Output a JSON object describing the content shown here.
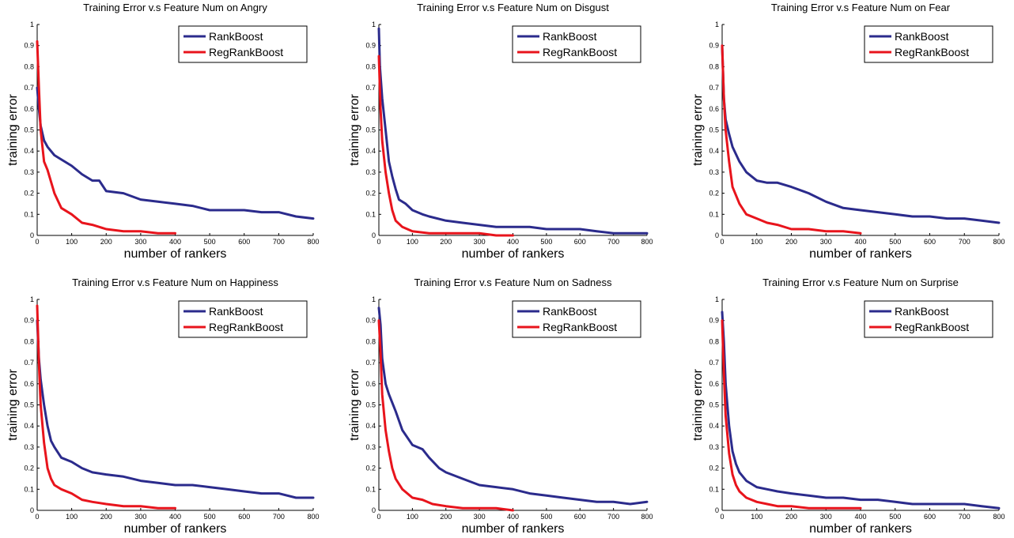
{
  "chart_data": [
    {
      "type": "line",
      "title": "Training Error v.s Feature Num on Angry",
      "xlabel": "number of rankers",
      "ylabel": "training error",
      "xlim": [
        0,
        800
      ],
      "ylim": [
        0,
        1
      ],
      "xticks": [
        0,
        100,
        200,
        300,
        400,
        500,
        600,
        700,
        800
      ],
      "yticks": [
        0,
        0.1,
        0.2,
        0.3,
        0.4,
        0.5,
        0.6,
        0.7,
        0.8,
        0.9,
        1
      ],
      "legend": "top-right",
      "series": [
        {
          "name": "RankBoost",
          "color": "#2b2b8c",
          "x": [
            0,
            5,
            10,
            20,
            30,
            50,
            70,
            100,
            130,
            160,
            180,
            200,
            250,
            300,
            350,
            400,
            450,
            500,
            550,
            600,
            650,
            700,
            750,
            800
          ],
          "y": [
            0.7,
            0.6,
            0.52,
            0.45,
            0.42,
            0.38,
            0.36,
            0.33,
            0.29,
            0.26,
            0.26,
            0.21,
            0.2,
            0.17,
            0.16,
            0.15,
            0.14,
            0.12,
            0.12,
            0.12,
            0.11,
            0.11,
            0.09,
            0.08
          ]
        },
        {
          "name": "RegRankBoost",
          "color": "#e8141c",
          "x": [
            0,
            5,
            10,
            20,
            30,
            50,
            70,
            100,
            130,
            160,
            200,
            250,
            300,
            350,
            400
          ],
          "y": [
            0.92,
            0.7,
            0.5,
            0.35,
            0.31,
            0.2,
            0.13,
            0.1,
            0.06,
            0.05,
            0.03,
            0.02,
            0.02,
            0.01,
            0.01
          ]
        }
      ]
    },
    {
      "type": "line",
      "title": "Training Error v.s Feature Num on Disgust",
      "xlabel": "number of rankers",
      "ylabel": "training error",
      "xlim": [
        0,
        800
      ],
      "ylim": [
        0,
        1
      ],
      "xticks": [
        0,
        100,
        200,
        300,
        400,
        500,
        600,
        700,
        800
      ],
      "yticks": [
        0,
        0.1,
        0.2,
        0.3,
        0.4,
        0.5,
        0.6,
        0.7,
        0.8,
        0.9,
        1
      ],
      "legend": "top-right",
      "series": [
        {
          "name": "RankBoost",
          "color": "#2b2b8c",
          "x": [
            0,
            3,
            10,
            20,
            30,
            40,
            50,
            60,
            80,
            100,
            130,
            150,
            200,
            250,
            300,
            350,
            400,
            450,
            500,
            550,
            600,
            650,
            700,
            750,
            800
          ],
          "y": [
            0.98,
            0.8,
            0.65,
            0.5,
            0.35,
            0.28,
            0.22,
            0.17,
            0.15,
            0.12,
            0.1,
            0.09,
            0.07,
            0.06,
            0.05,
            0.04,
            0.04,
            0.04,
            0.03,
            0.03,
            0.03,
            0.02,
            0.01,
            0.01,
            0.01
          ]
        },
        {
          "name": "RegRankBoost",
          "color": "#e8141c",
          "x": [
            0,
            5,
            10,
            20,
            30,
            40,
            50,
            70,
            100,
            150,
            200,
            250,
            300,
            350,
            400
          ],
          "y": [
            0.85,
            0.6,
            0.45,
            0.3,
            0.2,
            0.12,
            0.07,
            0.04,
            0.02,
            0.01,
            0.01,
            0.01,
            0.01,
            0.0,
            0.0
          ]
        }
      ]
    },
    {
      "type": "line",
      "title": "Training Error v.s Feature Num on Fear",
      "xlabel": "number of rankers",
      "ylabel": "training error",
      "xlim": [
        0,
        800
      ],
      "ylim": [
        0,
        1
      ],
      "xticks": [
        0,
        100,
        200,
        300,
        400,
        500,
        600,
        700,
        800
      ],
      "yticks": [
        0,
        0.1,
        0.2,
        0.3,
        0.4,
        0.5,
        0.6,
        0.7,
        0.8,
        0.9,
        1
      ],
      "legend": "top-right",
      "series": [
        {
          "name": "RankBoost",
          "color": "#2b2b8c",
          "x": [
            0,
            5,
            10,
            20,
            30,
            50,
            70,
            100,
            130,
            160,
            200,
            250,
            300,
            350,
            400,
            450,
            500,
            550,
            600,
            650,
            700,
            750,
            800
          ],
          "y": [
            0.9,
            0.65,
            0.55,
            0.48,
            0.42,
            0.35,
            0.3,
            0.26,
            0.25,
            0.25,
            0.23,
            0.2,
            0.16,
            0.13,
            0.12,
            0.11,
            0.1,
            0.09,
            0.09,
            0.08,
            0.08,
            0.07,
            0.06
          ]
        },
        {
          "name": "RegRankBoost",
          "color": "#e8141c",
          "x": [
            0,
            5,
            10,
            20,
            30,
            50,
            70,
            100,
            130,
            160,
            200,
            250,
            300,
            350,
            400
          ],
          "y": [
            0.9,
            0.65,
            0.5,
            0.35,
            0.23,
            0.15,
            0.1,
            0.08,
            0.06,
            0.05,
            0.03,
            0.03,
            0.02,
            0.02,
            0.01
          ]
        }
      ]
    },
    {
      "type": "line",
      "title": "Training Error v.s Feature Num on Happiness",
      "xlabel": "number of rankers",
      "ylabel": "training error",
      "xlim": [
        0,
        800
      ],
      "ylim": [
        0,
        1
      ],
      "xticks": [
        0,
        100,
        200,
        300,
        400,
        500,
        600,
        700,
        800
      ],
      "yticks": [
        0,
        0.1,
        0.2,
        0.3,
        0.4,
        0.5,
        0.6,
        0.7,
        0.8,
        0.9,
        1
      ],
      "legend": "top-right",
      "series": [
        {
          "name": "RankBoost",
          "color": "#2b2b8c",
          "x": [
            0,
            5,
            10,
            20,
            30,
            40,
            50,
            70,
            100,
            130,
            160,
            200,
            250,
            300,
            350,
            400,
            450,
            500,
            550,
            600,
            650,
            700,
            750,
            800
          ],
          "y": [
            0.9,
            0.72,
            0.62,
            0.5,
            0.4,
            0.33,
            0.3,
            0.25,
            0.23,
            0.2,
            0.18,
            0.17,
            0.16,
            0.14,
            0.13,
            0.12,
            0.12,
            0.11,
            0.1,
            0.09,
            0.08,
            0.08,
            0.06,
            0.06
          ]
        },
        {
          "name": "RegRankBoost",
          "color": "#e8141c",
          "x": [
            0,
            5,
            10,
            20,
            30,
            40,
            50,
            70,
            100,
            130,
            160,
            200,
            250,
            300,
            350,
            400
          ],
          "y": [
            0.97,
            0.7,
            0.5,
            0.32,
            0.2,
            0.15,
            0.12,
            0.1,
            0.08,
            0.05,
            0.04,
            0.03,
            0.02,
            0.02,
            0.01,
            0.01
          ]
        }
      ]
    },
    {
      "type": "line",
      "title": "Training Error v.s Feature Num on Sadness",
      "xlabel": "number of rankers",
      "ylabel": "training error",
      "xlim": [
        0,
        800
      ],
      "ylim": [
        0,
        1
      ],
      "xticks": [
        0,
        100,
        200,
        300,
        400,
        500,
        600,
        700,
        800
      ],
      "yticks": [
        0,
        0.1,
        0.2,
        0.3,
        0.4,
        0.5,
        0.6,
        0.7,
        0.8,
        0.9,
        1
      ],
      "legend": "top-right",
      "series": [
        {
          "name": "RankBoost",
          "color": "#2b2b8c",
          "x": [
            0,
            5,
            10,
            20,
            30,
            50,
            70,
            100,
            130,
            150,
            180,
            200,
            250,
            300,
            350,
            400,
            450,
            500,
            550,
            600,
            650,
            700,
            750,
            800
          ],
          "y": [
            0.96,
            0.88,
            0.72,
            0.6,
            0.55,
            0.47,
            0.38,
            0.31,
            0.29,
            0.25,
            0.2,
            0.18,
            0.15,
            0.12,
            0.11,
            0.1,
            0.08,
            0.07,
            0.06,
            0.05,
            0.04,
            0.04,
            0.03,
            0.04
          ]
        },
        {
          "name": "RegRankBoost",
          "color": "#e8141c",
          "x": [
            0,
            5,
            10,
            20,
            30,
            40,
            50,
            70,
            100,
            130,
            160,
            200,
            250,
            300,
            350,
            400
          ],
          "y": [
            0.9,
            0.75,
            0.55,
            0.38,
            0.28,
            0.2,
            0.15,
            0.1,
            0.06,
            0.05,
            0.03,
            0.02,
            0.01,
            0.01,
            0.01,
            0.0
          ]
        }
      ]
    },
    {
      "type": "line",
      "title": "Training Error v.s Feature Num on Surprise",
      "xlabel": "number of rankers",
      "ylabel": "training error",
      "xlim": [
        0,
        800
      ],
      "ylim": [
        0,
        1
      ],
      "xticks": [
        0,
        100,
        200,
        300,
        400,
        500,
        600,
        700,
        800
      ],
      "yticks": [
        0,
        0.1,
        0.2,
        0.3,
        0.4,
        0.5,
        0.6,
        0.7,
        0.8,
        0.9,
        1
      ],
      "legend": "top-right",
      "series": [
        {
          "name": "RankBoost",
          "color": "#2b2b8c",
          "x": [
            0,
            5,
            10,
            20,
            30,
            40,
            50,
            70,
            100,
            130,
            160,
            200,
            250,
            300,
            350,
            400,
            450,
            500,
            550,
            600,
            650,
            700,
            750,
            800
          ],
          "y": [
            0.94,
            0.8,
            0.6,
            0.4,
            0.28,
            0.22,
            0.18,
            0.14,
            0.11,
            0.1,
            0.09,
            0.08,
            0.07,
            0.06,
            0.06,
            0.05,
            0.05,
            0.04,
            0.03,
            0.03,
            0.03,
            0.03,
            0.02,
            0.01
          ]
        },
        {
          "name": "RegRankBoost",
          "color": "#e8141c",
          "x": [
            0,
            5,
            10,
            20,
            30,
            40,
            50,
            70,
            100,
            130,
            160,
            200,
            250,
            300,
            350,
            400
          ],
          "y": [
            0.9,
            0.65,
            0.45,
            0.27,
            0.17,
            0.12,
            0.09,
            0.06,
            0.04,
            0.03,
            0.02,
            0.02,
            0.01,
            0.01,
            0.01,
            0.01
          ]
        }
      ]
    }
  ]
}
